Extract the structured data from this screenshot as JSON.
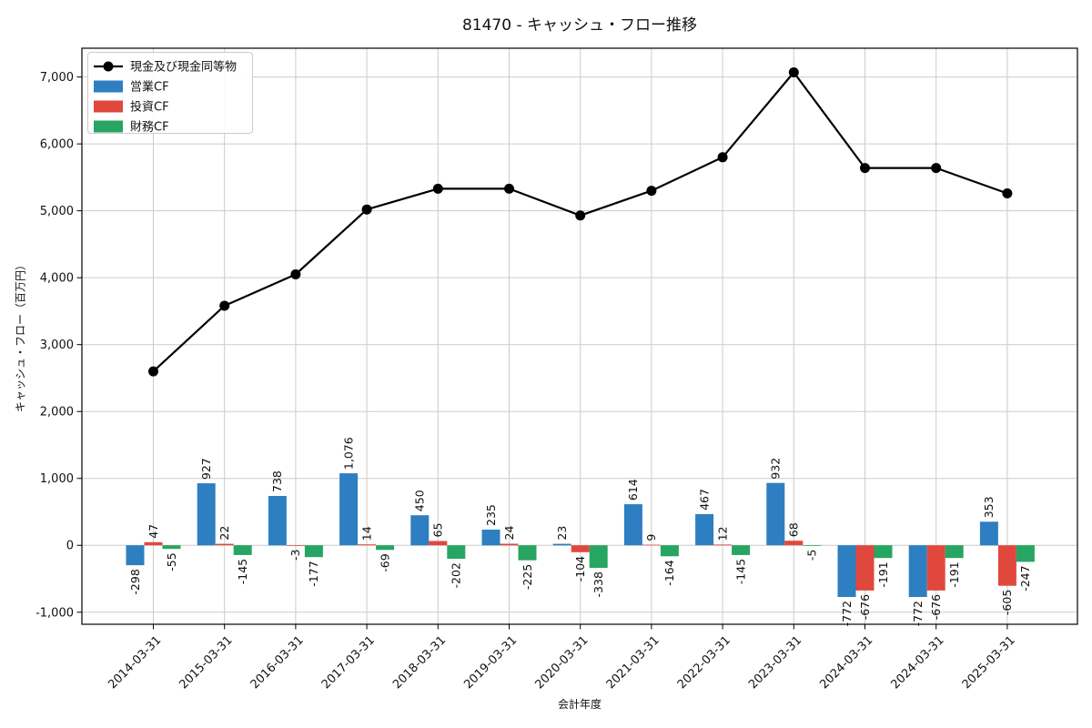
{
  "title": "81470 - キャッシュ・フロー推移",
  "chart_data": {
    "type": "bar",
    "subtype": "grouped bars with overlaid line",
    "title": "81470 - キャッシュ・フロー推移",
    "xlabel": "会計年度",
    "ylabel": "キャッシュ・フロー（百万円）",
    "categories": [
      "2014-03-31",
      "2015-03-31",
      "2016-03-31",
      "2017-03-31",
      "2018-03-31",
      "2019-03-31",
      "2020-03-31",
      "2021-03-31",
      "2022-03-31",
      "2023-03-31",
      "2024-03-31",
      "2024-03-31",
      "2025-03-31"
    ],
    "series": [
      {
        "name": "現金及び現金同等物",
        "type": "line",
        "color": "#000000",
        "marker": "circle",
        "values": [
          2600,
          3580,
          4050,
          5020,
          5330,
          5330,
          4930,
          5300,
          5800,
          7070,
          5640,
          5640,
          5260
        ],
        "values_note": "estimated from pixel positions; no data labels shown"
      },
      {
        "name": "営業CF",
        "type": "bar",
        "color": "#2d7fc1",
        "values": [
          -298,
          927,
          738,
          1076,
          450,
          235,
          23,
          614,
          467,
          932,
          -772,
          -772,
          353
        ]
      },
      {
        "name": "投資CF",
        "type": "bar",
        "color": "#e0483e",
        "values": [
          47,
          22,
          -3,
          14,
          65,
          24,
          -104,
          9,
          12,
          68,
          -676,
          -676,
          -605
        ]
      },
      {
        "name": "財務CF",
        "type": "bar",
        "color": "#27a562",
        "values": [
          -55,
          -145,
          -177,
          -69,
          -202,
          -225,
          -338,
          -164,
          -145,
          -5,
          -191,
          -191,
          -247
        ]
      }
    ],
    "yticks": [
      -1000,
      0,
      1000,
      2000,
      3000,
      4000,
      5000,
      6000,
      7000
    ],
    "ylim": [
      -1180,
      7430
    ],
    "grid": true,
    "grid_color": "#cccccc",
    "bar_value_labels": true,
    "legend_position": "upper left",
    "legend_entries": [
      "現金及び現金同等物",
      "営業CF",
      "投資CF",
      "財務CF"
    ]
  }
}
